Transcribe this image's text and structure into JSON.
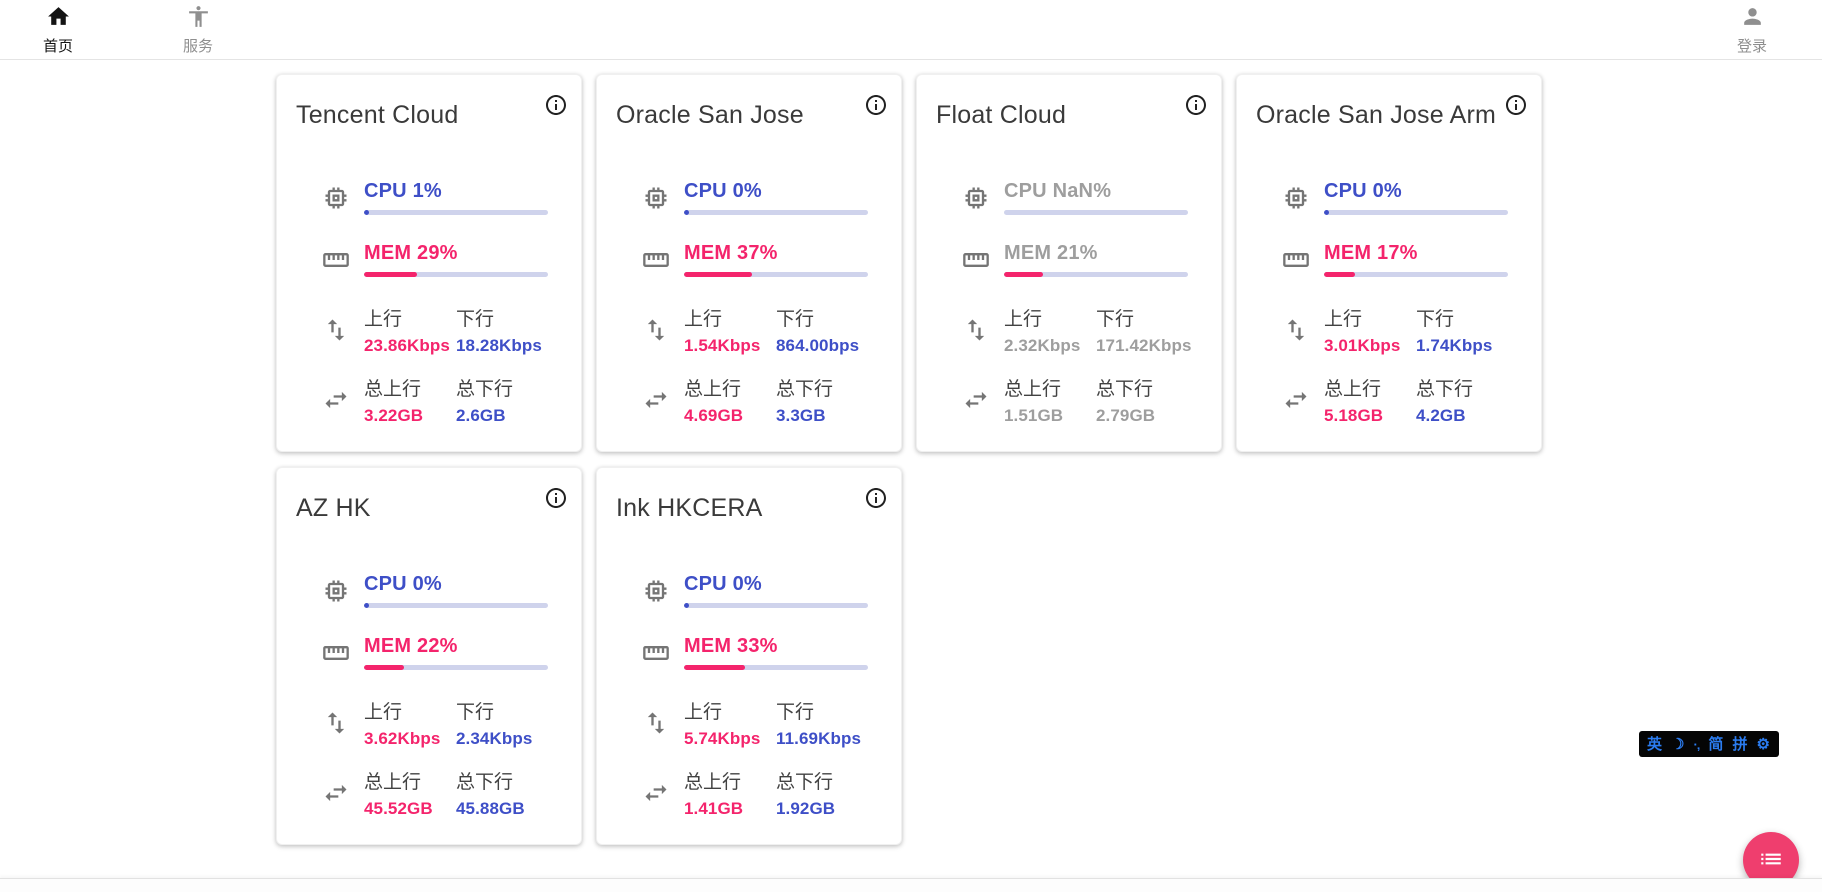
{
  "nav": {
    "home": {
      "label": "首页"
    },
    "services": {
      "label": "服务"
    },
    "login": {
      "label": "登录"
    }
  },
  "labels": {
    "upload": "上行",
    "download": "下行",
    "total_upload": "总上行",
    "total_download": "总下行"
  },
  "servers": [
    {
      "name": "Tencent Cloud",
      "cpu": "CPU 1%",
      "cpu_pct": 1,
      "mem": "MEM 29%",
      "mem_pct": 29,
      "upload": "23.86Kbps",
      "download": "18.28Kbps",
      "total_upload": "3.22GB",
      "total_download": "2.6GB",
      "offline": false
    },
    {
      "name": "Oracle San Jose",
      "cpu": "CPU 0%",
      "cpu_pct": 0,
      "mem": "MEM 37%",
      "mem_pct": 37,
      "upload": "1.54Kbps",
      "download": "864.00bps",
      "total_upload": "4.69GB",
      "total_download": "3.3GB",
      "offline": false
    },
    {
      "name": "Float Cloud",
      "cpu": "CPU NaN%",
      "cpu_pct": null,
      "mem": "MEM 21%",
      "mem_pct": 21,
      "upload": "2.32Kbps",
      "download": "171.42Kbps",
      "total_upload": "1.51GB",
      "total_download": "2.79GB",
      "offline": true
    },
    {
      "name": "Oracle San Jose Arm",
      "cpu": "CPU 0%",
      "cpu_pct": 0,
      "mem": "MEM 17%",
      "mem_pct": 17,
      "upload": "3.01Kbps",
      "download": "1.74Kbps",
      "total_upload": "5.18GB",
      "total_download": "4.2GB",
      "offline": false
    },
    {
      "name": "AZ HK",
      "cpu": "CPU 0%",
      "cpu_pct": 0,
      "mem": "MEM 22%",
      "mem_pct": 22,
      "upload": "3.62Kbps",
      "download": "2.34Kbps",
      "total_upload": "45.52GB",
      "total_download": "45.88GB",
      "offline": false
    },
    {
      "name": "Ink HKCERA",
      "cpu": "CPU 0%",
      "cpu_pct": 0,
      "mem": "MEM 33%",
      "mem_pct": 33,
      "upload": "5.74Kbps",
      "download": "11.69Kbps",
      "total_upload": "1.41GB",
      "total_download": "1.92GB",
      "offline": false
    }
  ],
  "ime_bar": {
    "items": [
      "英",
      "☽",
      "·‚",
      "简",
      "拼",
      "⚙︎"
    ]
  },
  "colors": {
    "accent_blue": "#3e4fc7",
    "accent_pink": "#f4246c",
    "offline_gray": "#9e9e9e",
    "fab_pink": "#ef3e6e",
    "ime_blue": "#2b7cf0"
  }
}
